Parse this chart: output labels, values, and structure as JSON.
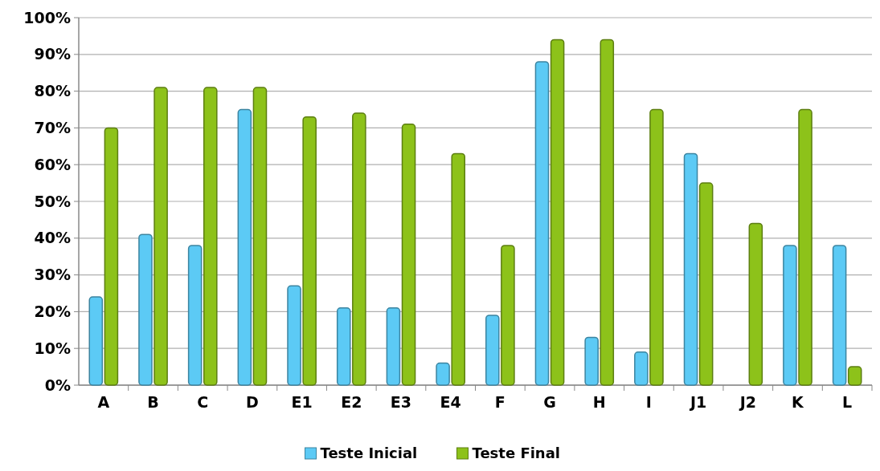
{
  "chart_data": {
    "type": "bar",
    "categories": [
      "A",
      "B",
      "C",
      "D",
      "E1",
      "E2",
      "E3",
      "E4",
      "F",
      "G",
      "H",
      "I",
      "J1",
      "J2",
      "K",
      "L"
    ],
    "series": [
      {
        "name": "Teste Inicial",
        "color": "#5ccaf5",
        "values": [
          24,
          41,
          38,
          75,
          27,
          21,
          21,
          6,
          19,
          88,
          13,
          9,
          63,
          null,
          38,
          38
        ]
      },
      {
        "name": "Teste Final",
        "color": "#8dc21a",
        "values": [
          70,
          81,
          81,
          81,
          73,
          74,
          71,
          63,
          38,
          94,
          94,
          75,
          55,
          44,
          75,
          5
        ]
      }
    ],
    "ylim": [
      0,
      100
    ],
    "yticks": [
      {
        "value": 0,
        "label": "0%"
      },
      {
        "value": 10,
        "label": "10%"
      },
      {
        "value": 20,
        "label": "20%"
      },
      {
        "value": 30,
        "label": "30%"
      },
      {
        "value": 40,
        "label": "40%"
      },
      {
        "value": 50,
        "label": "50%"
      },
      {
        "value": 60,
        "label": "60%"
      },
      {
        "value": 70,
        "label": "70%"
      },
      {
        "value": 80,
        "label": "80%"
      },
      {
        "value": 90,
        "label": "90%"
      },
      {
        "value": 100,
        "label": "100%"
      }
    ],
    "grid": "y",
    "legend": "bottom"
  }
}
